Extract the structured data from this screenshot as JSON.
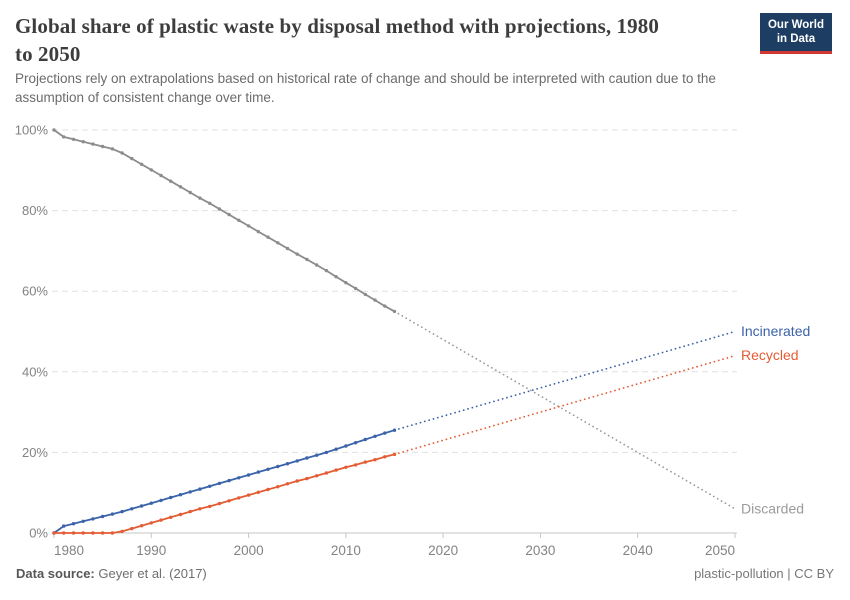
{
  "header": {
    "title": "Global share of plastic waste by disposal method with projections, 1980 to 2050",
    "subtitle": "Projections rely on extrapolations based on historical rate of change and should be interpreted with caution due to the assumption of consistent change over time.",
    "logo": {
      "line1": "Our World",
      "line2": "in Data",
      "bg": "#1d3d63",
      "accent": "#d23732"
    }
  },
  "footer": {
    "source_label": "Data source:",
    "source_value": " Geyer et al. (2017)",
    "note": "plastic-pollution | CC BY"
  },
  "chart_data": {
    "type": "line",
    "title": "Global share of plastic waste by disposal method with projections, 1980 to 2050",
    "xlabel": "",
    "ylabel": "",
    "xlim": [
      1980,
      2050
    ],
    "ylim": [
      0,
      100
    ],
    "x_ticks": [
      1980,
      1990,
      2000,
      2010,
      2020,
      2030,
      2040,
      2050
    ],
    "y_ticks": [
      0,
      20,
      40,
      60,
      80,
      100
    ],
    "y_tick_suffix": "%",
    "grid": "horizontal-dashed",
    "legend_position": "right-end-labels",
    "colors": {
      "grid": "#e0e0e0",
      "axis": "#c6c6c6",
      "tick_label": "#838383"
    },
    "historical_years": [
      1980,
      1981,
      1982,
      1983,
      1984,
      1985,
      1986,
      1987,
      1988,
      1989,
      1990,
      1991,
      1992,
      1993,
      1994,
      1995,
      1996,
      1997,
      1998,
      1999,
      2000,
      2001,
      2002,
      2003,
      2004,
      2005,
      2006,
      2007,
      2008,
      2009,
      2010,
      2011,
      2012,
      2013,
      2014,
      2015
    ],
    "series": [
      {
        "name": "Discarded",
        "color": "#8c8c8c",
        "label_color": "#9b9b9b",
        "projection_color": "#9a9a9a",
        "values": [
          100,
          98.3,
          97.7,
          97.1,
          96.5,
          95.9,
          95.3,
          94.3,
          92.9,
          91.5,
          90.1,
          88.7,
          87.3,
          85.9,
          84.5,
          83.1,
          81.8,
          80.4,
          79,
          77.6,
          76.2,
          74.8,
          73.4,
          72,
          70.6,
          69.2,
          67.9,
          66.5,
          65.1,
          63.6,
          62.1,
          60.7,
          59.2,
          57.8,
          56.3,
          55
        ],
        "projection": {
          "years": [
            2015,
            2050
          ],
          "values": [
            55,
            6
          ]
        }
      },
      {
        "name": "Incinerated",
        "color": "#3a63a9",
        "label_color": "#3a63a9",
        "projection_color": "#3a63a9",
        "values": [
          0,
          1.7,
          2.3,
          2.9,
          3.5,
          4.1,
          4.7,
          5.3,
          6,
          6.7,
          7.4,
          8.1,
          8.8,
          9.5,
          10.2,
          10.9,
          11.6,
          12.3,
          13,
          13.7,
          14.4,
          15.1,
          15.8,
          16.5,
          17.2,
          17.9,
          18.6,
          19.3,
          20,
          20.8,
          21.6,
          22.4,
          23.2,
          24,
          24.8,
          25.5
        ],
        "projection": {
          "years": [
            2015,
            2050
          ],
          "values": [
            25.5,
            50
          ]
        }
      },
      {
        "name": "Recycled",
        "color": "#e45c33",
        "label_color": "#e45c33",
        "projection_color": "#e45c33",
        "values": [
          0,
          0,
          0,
          0,
          0,
          0,
          0,
          0.4,
          1.1,
          1.8,
          2.5,
          3.2,
          3.9,
          4.6,
          5.3,
          6,
          6.6,
          7.3,
          8,
          8.7,
          9.4,
          10.1,
          10.8,
          11.5,
          12.2,
          12.9,
          13.5,
          14.2,
          14.9,
          15.6,
          16.3,
          16.9,
          17.6,
          18.2,
          18.9,
          19.5
        ],
        "projection": {
          "years": [
            2015,
            2050
          ],
          "values": [
            19.5,
            44
          ]
        }
      }
    ]
  }
}
